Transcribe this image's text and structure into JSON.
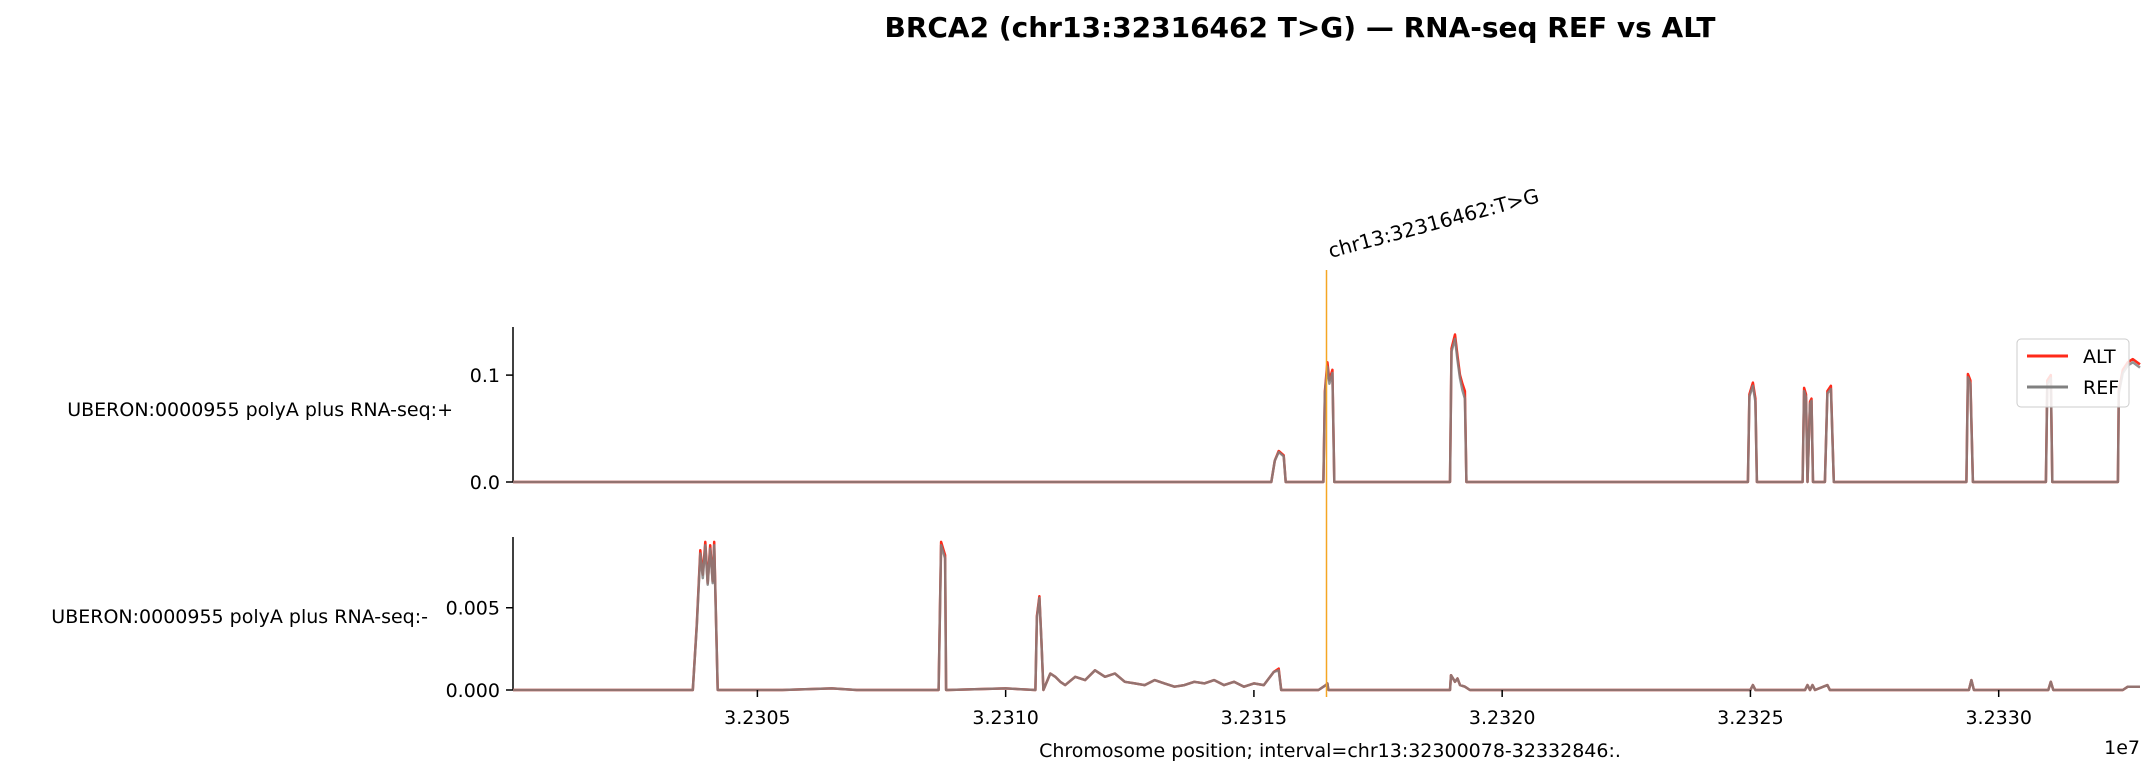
{
  "chart_data": {
    "type": "line",
    "title": "BRCA2 (chr13:32316462 T>G) — RNA-seq REF vs ALT",
    "xlabel": "Chromosome position; interval=chr13:32300078-32332846:.",
    "x_offset_label": "1e7",
    "xlim": [
      32300078,
      32332846
    ],
    "x_ticks": [
      32305000,
      32310000,
      32315000,
      32320000,
      32325000,
      32330000
    ],
    "x_tick_labels": [
      "3.2305",
      "3.2310",
      "3.2315",
      "3.2320",
      "3.2325",
      "3.2330"
    ],
    "variant": {
      "position": 32316462,
      "label": "chr13:32316462:T>G",
      "color": "#f5a623"
    },
    "legend": {
      "placement": "right",
      "entries": [
        {
          "label": "ALT",
          "color": "#ff2a1a"
        },
        {
          "label": "REF",
          "color": "#808080"
        }
      ]
    },
    "tracks": [
      {
        "label": "UBERON:0000955 polyA plus RNA-seq:+",
        "ylim": [
          0.0,
          0.145
        ],
        "y_ticks": [
          0.0,
          0.1
        ],
        "y_tick_labels": [
          "0.0",
          "0.1"
        ],
        "series": [
          {
            "name": "ALT",
            "color": "#ff2a1a",
            "x": [
              32300078,
              32315350,
              32315420,
              32315500,
              32315600,
              32315640,
              32316400,
              32316430,
              32316480,
              32316520,
              32316580,
              32316620,
              32318950,
              32318980,
              32319050,
              32319100,
              32319150,
              32319200,
              32319250,
              32319280,
              32324950,
              32324980,
              32325050,
              32325100,
              32325130,
              32326050,
              32326080,
              32326120,
              32326150,
              32326200,
              32326230,
              32326260,
              32326500,
              32326550,
              32326620,
              32326680,
              32329350,
              32329380,
              32329430,
              32329480,
              32330950,
              32330980,
              32331050,
              32331080,
              32332400,
              32332420,
              32332500,
              32332600,
              32332700,
              32332846
            ],
            "y": [
              0.0,
              0.0,
              0.02,
              0.029,
              0.025,
              0.0,
              0.0,
              0.085,
              0.112,
              0.095,
              0.105,
              0.0,
              0.0,
              0.125,
              0.138,
              0.118,
              0.1,
              0.092,
              0.085,
              0.0,
              0.0,
              0.082,
              0.093,
              0.078,
              0.0,
              0.0,
              0.088,
              0.082,
              0.0,
              0.075,
              0.078,
              0.0,
              0.0,
              0.085,
              0.09,
              0.0,
              0.0,
              0.101,
              0.095,
              0.0,
              0.0,
              0.095,
              0.1,
              0.0,
              0.0,
              0.085,
              0.105,
              0.112,
              0.115,
              0.11
            ]
          },
          {
            "name": "REF",
            "color": "#808080",
            "x": [
              32300078,
              32315350,
              32315420,
              32315500,
              32315600,
              32315640,
              32316400,
              32316430,
              32316480,
              32316520,
              32316580,
              32316620,
              32318950,
              32318980,
              32319050,
              32319100,
              32319150,
              32319200,
              32319250,
              32319280,
              32324950,
              32324980,
              32325050,
              32325100,
              32325130,
              32326050,
              32326080,
              32326120,
              32326150,
              32326200,
              32326230,
              32326260,
              32326500,
              32326550,
              32326620,
              32326680,
              32329350,
              32329380,
              32329430,
              32329480,
              32330950,
              32330980,
              32331050,
              32331080,
              32332400,
              32332420,
              32332500,
              32332600,
              32332700,
              32332846
            ],
            "y": [
              0.0,
              0.0,
              0.02,
              0.028,
              0.024,
              0.0,
              0.0,
              0.083,
              0.108,
              0.092,
              0.102,
              0.0,
              0.0,
              0.122,
              0.134,
              0.114,
              0.097,
              0.086,
              0.078,
              0.0,
              0.0,
              0.08,
              0.09,
              0.075,
              0.0,
              0.0,
              0.085,
              0.079,
              0.0,
              0.073,
              0.076,
              0.0,
              0.0,
              0.083,
              0.087,
              0.0,
              0.0,
              0.098,
              0.092,
              0.0,
              0.0,
              0.092,
              0.097,
              0.0,
              0.0,
              0.083,
              0.102,
              0.109,
              0.112,
              0.107
            ]
          }
        ]
      },
      {
        "label": "UBERON:0000955 polyA plus RNA-seq:-",
        "ylim": [
          0.0,
          0.0093
        ],
        "y_ticks": [
          0.0,
          0.005
        ],
        "y_tick_labels": [
          "0.000",
          "0.005"
        ],
        "series": [
          {
            "name": "ALT",
            "color": "#ff2a1a",
            "x": [
              32300078,
              32303700,
              32303780,
              32303850,
              32303900,
              32303950,
              32304000,
              32304050,
              32304100,
              32304130,
              32304200,
              32305500,
              32306500,
              32307000,
              32308650,
              32308700,
              32308750,
              32308780,
              32308800,
              32308830,
              32310000,
              32310600,
              32310630,
              32310680,
              32310720,
              32310760,
              32310900,
              32311000,
              32311100,
              32311200,
              32311400,
              32311600,
              32311800,
              32312000,
              32312200,
              32312400,
              32312600,
              32312800,
              32313000,
              32313200,
              32313400,
              32313600,
              32313800,
              32314000,
              32314200,
              32314400,
              32314600,
              32314800,
              32315000,
              32315200,
              32315400,
              32315500,
              32315550,
              32316300,
              32316450,
              32316480,
              32316500,
              32318950,
              32318970,
              32319050,
              32319100,
              32319150,
              32319250,
              32319350,
              32325000,
              32325050,
              32325100,
              32326100,
              32326150,
              32326200,
              32326250,
              32326300,
              32326550,
              32326600,
              32329400,
              32329450,
              32329500,
              32331000,
              32331050,
              32331100,
              32332500,
              32332600,
              32332846
            ],
            "y": [
              0.0,
              0.0,
              0.004,
              0.0085,
              0.007,
              0.009,
              0.0065,
              0.0088,
              0.0066,
              0.009,
              0.0,
              0.0,
              0.0001,
              0.0,
              0.0,
              0.009,
              0.0085,
              0.0082,
              0.0,
              0.0,
              0.0001,
              0.0,
              0.0045,
              0.0057,
              0.003,
              0.0,
              0.001,
              0.0008,
              0.0005,
              0.0003,
              0.0008,
              0.0006,
              0.0012,
              0.0008,
              0.001,
              0.0005,
              0.0004,
              0.0003,
              0.0006,
              0.0004,
              0.0002,
              0.0003,
              0.0005,
              0.0004,
              0.0006,
              0.0003,
              0.0005,
              0.0002,
              0.0004,
              0.0003,
              0.0011,
              0.0013,
              0.0,
              0.0,
              0.0003,
              0.0004,
              0.0,
              0.0,
              0.0009,
              0.0005,
              0.0007,
              0.0003,
              0.0002,
              0.0,
              0.0,
              0.0003,
              0.0,
              0.0,
              0.0003,
              0.0,
              0.0003,
              0.0,
              0.0003,
              0.0,
              0.0,
              0.0006,
              0.0,
              0.0,
              0.0005,
              0.0,
              0.0,
              0.0002,
              0.0002
            ]
          },
          {
            "name": "REF",
            "color": "#808080",
            "x": [
              32300078,
              32303700,
              32303780,
              32303850,
              32303900,
              32303950,
              32304000,
              32304050,
              32304100,
              32304130,
              32304200,
              32305500,
              32306500,
              32307000,
              32308650,
              32308700,
              32308750,
              32308780,
              32308800,
              32308830,
              32310000,
              32310600,
              32310630,
              32310680,
              32310720,
              32310760,
              32310900,
              32311000,
              32311100,
              32311200,
              32311400,
              32311600,
              32311800,
              32312000,
              32312200,
              32312400,
              32312600,
              32312800,
              32313000,
              32313200,
              32313400,
              32313600,
              32313800,
              32314000,
              32314200,
              32314400,
              32314600,
              32314800,
              32315000,
              32315200,
              32315400,
              32315500,
              32315550,
              32316300,
              32316450,
              32316480,
              32316500,
              32318950,
              32318970,
              32319050,
              32319100,
              32319150,
              32319250,
              32319350,
              32325000,
              32325050,
              32325100,
              32326100,
              32326150,
              32326200,
              32326250,
              32326300,
              32326550,
              32326600,
              32329400,
              32329450,
              32329500,
              32331000,
              32331050,
              32331100,
              32332500,
              32332600,
              32332846
            ],
            "y": [
              0.0,
              0.0,
              0.0039,
              0.0083,
              0.0068,
              0.0088,
              0.0064,
              0.0086,
              0.0065,
              0.0088,
              0.0,
              0.0,
              0.0001,
              0.0,
              0.0,
              0.0088,
              0.0083,
              0.008,
              0.0,
              0.0,
              0.0001,
              0.0,
              0.0044,
              0.0056,
              0.003,
              0.0,
              0.001,
              0.0008,
              0.0005,
              0.0003,
              0.0008,
              0.0006,
              0.0012,
              0.0008,
              0.001,
              0.0005,
              0.0004,
              0.0003,
              0.0006,
              0.0004,
              0.0002,
              0.0003,
              0.0005,
              0.0004,
              0.0006,
              0.0003,
              0.0005,
              0.0002,
              0.0004,
              0.0003,
              0.0011,
              0.0012,
              0.0,
              0.0,
              0.0003,
              0.0004,
              0.0,
              0.0,
              0.0009,
              0.0005,
              0.0007,
              0.0003,
              0.0002,
              0.0,
              0.0,
              0.0003,
              0.0,
              0.0,
              0.0003,
              0.0,
              0.0003,
              0.0,
              0.0003,
              0.0,
              0.0,
              0.0006,
              0.0,
              0.0,
              0.0005,
              0.0,
              0.0,
              0.0002,
              0.0002
            ]
          }
        ]
      }
    ]
  }
}
